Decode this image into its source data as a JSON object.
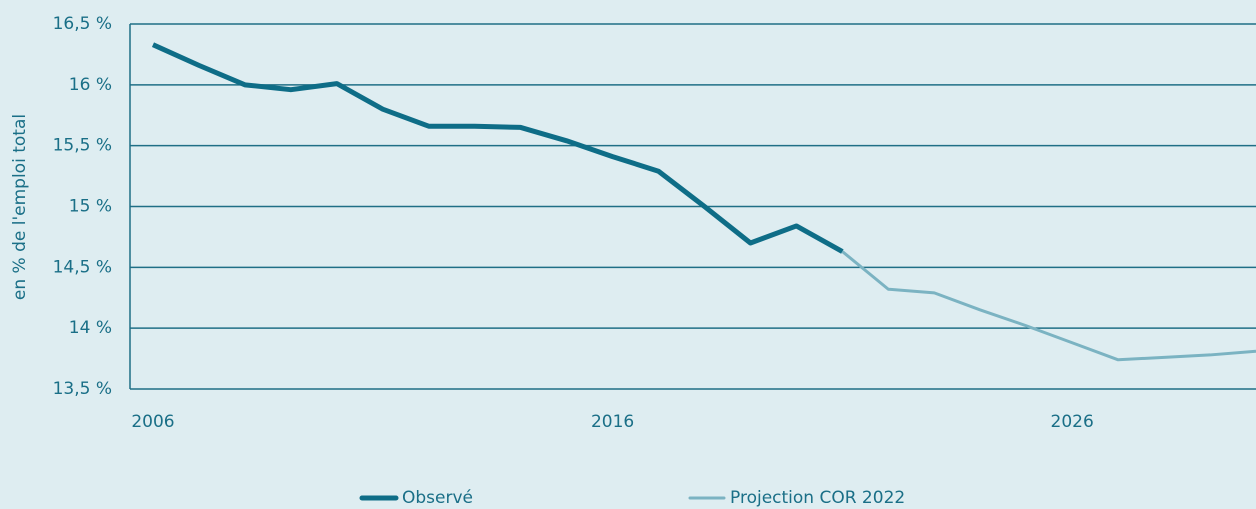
{
  "chart_data": {
    "type": "line",
    "ylabel": "en % de l'emploi total",
    "series": [
      {
        "name": "Observé",
        "color": "#0e6d87",
        "width": 5,
        "x": [
          2006,
          2007,
          2008,
          2009,
          2010,
          2011,
          2012,
          2013,
          2014,
          2015,
          2016,
          2017,
          2018,
          2019,
          2020,
          2021
        ],
        "values": [
          16.33,
          16.16,
          16.0,
          15.96,
          16.01,
          15.8,
          15.66,
          15.66,
          15.65,
          15.54,
          15.41,
          15.29,
          15.0,
          14.7,
          14.84,
          14.63
        ]
      },
      {
        "name": "Projection COR 2022",
        "color": "#7bb3c2",
        "width": 3,
        "x": [
          2021,
          2022,
          2023,
          2024,
          2025,
          2026,
          2027,
          2028,
          2029,
          2030
        ],
        "values": [
          14.63,
          14.32,
          14.29,
          14.15,
          14.02,
          13.88,
          13.74,
          13.76,
          13.78,
          13.81
        ]
      }
    ],
    "xlim": [
      2005.5,
      2030
    ],
    "xticks": [
      2006,
      2016,
      2026
    ],
    "ylim": [
      13.5,
      16.5
    ],
    "yticks": [
      {
        "value": 13.5,
        "label": "13,5 %"
      },
      {
        "value": 14,
        "label": "14 %"
      },
      {
        "value": 14.5,
        "label": "14,5 %"
      },
      {
        "value": 15,
        "label": "15 %"
      },
      {
        "value": 15.5,
        "label": "15,5 %"
      },
      {
        "value": 16,
        "label": "16 %"
      },
      {
        "value": 16.5,
        "label": "16,5 %"
      }
    ],
    "grid": true,
    "grid_color": "#1f6f86"
  }
}
